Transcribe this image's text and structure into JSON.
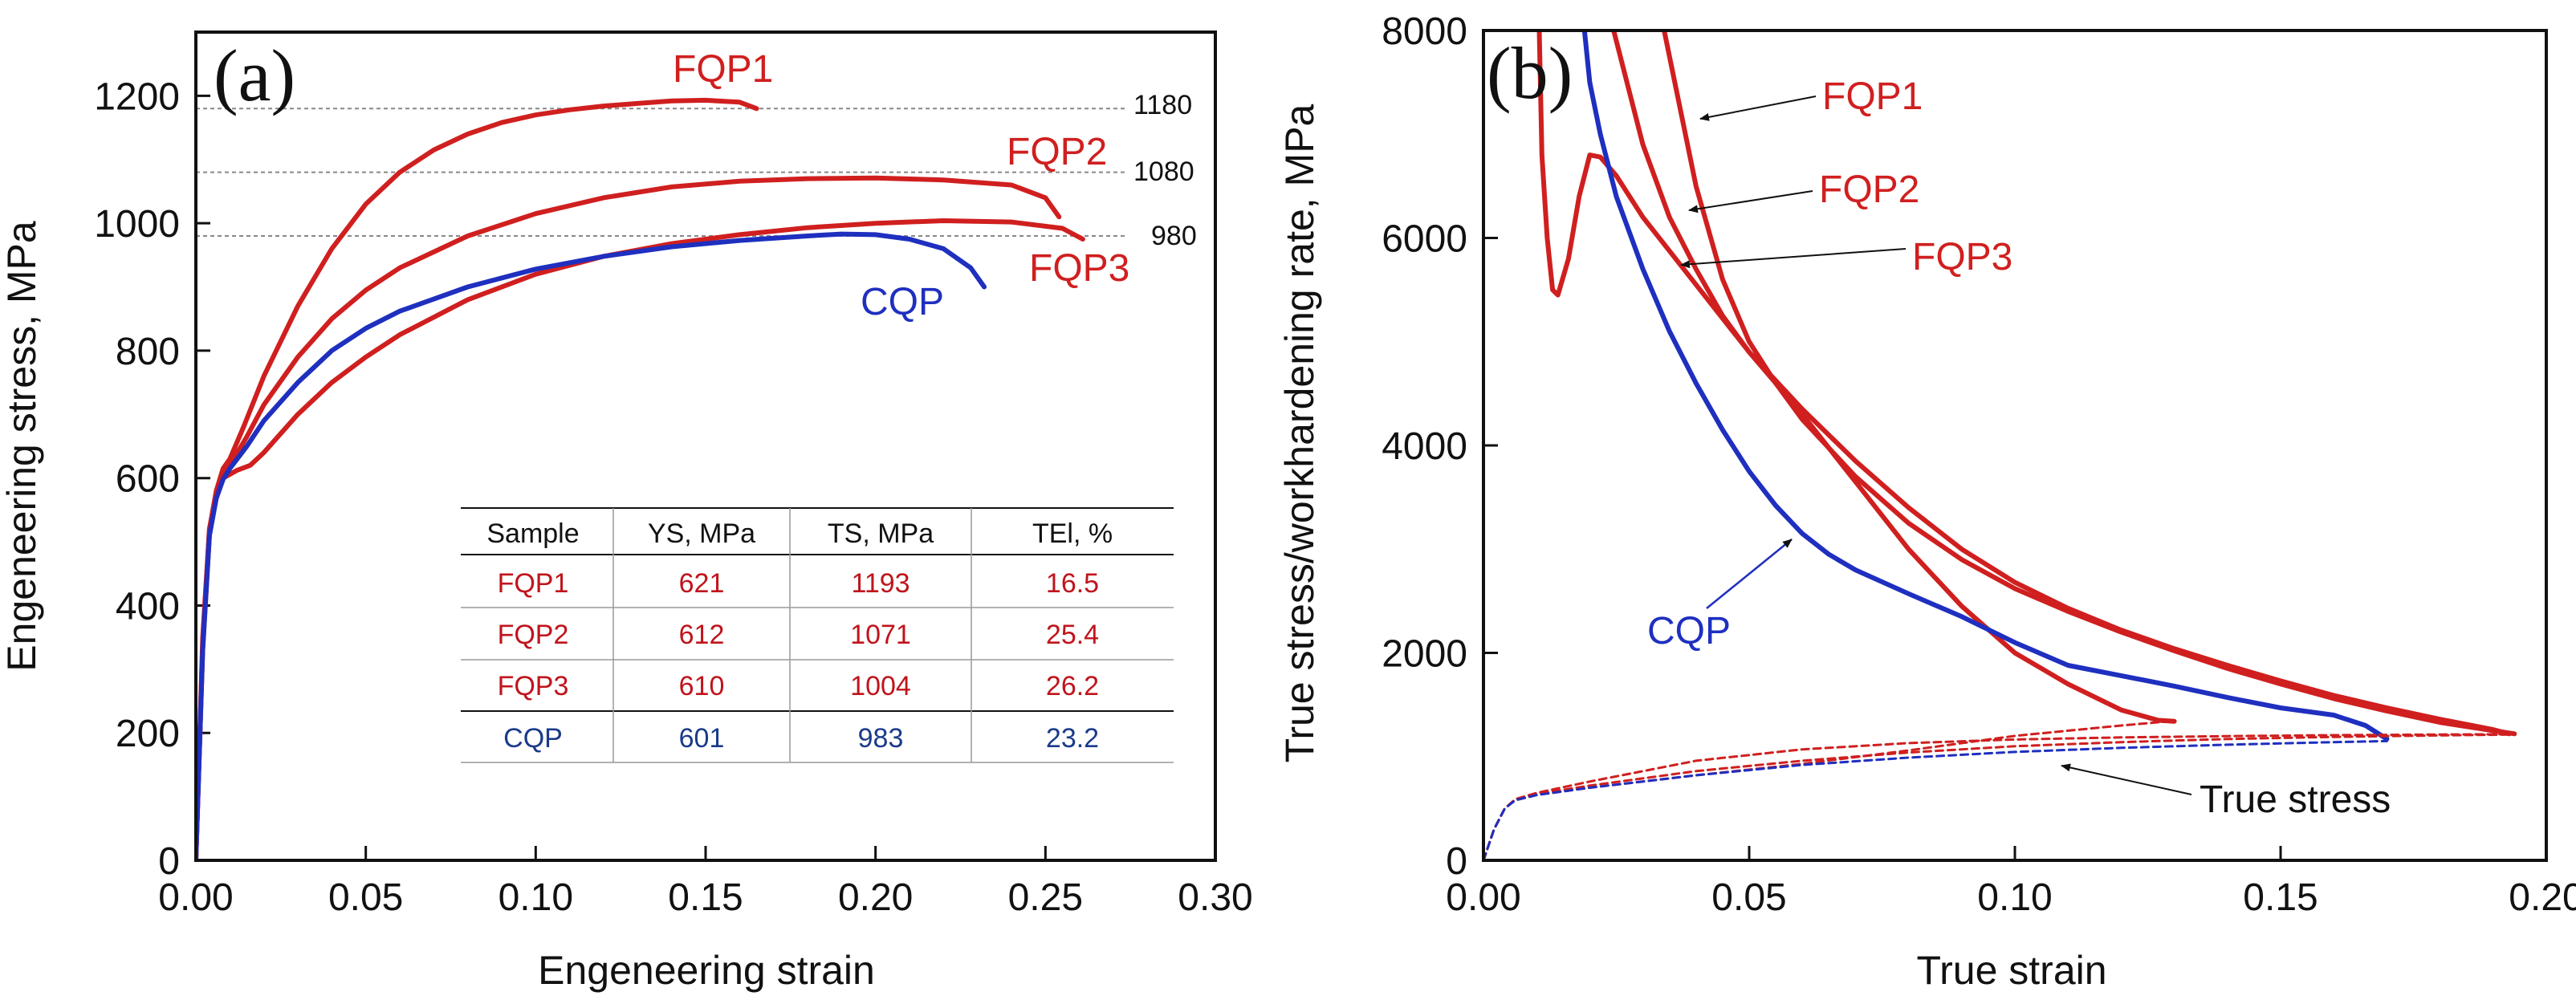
{
  "colors": {
    "red": "#d01f1f",
    "blue": "#1f2fbf",
    "axis": "#111111",
    "guide": "#888888",
    "table_red": "#c0141c",
    "table_blue": "#1a3a8a"
  },
  "chart_data": [
    {
      "type": "line",
      "panel_label": "(a)",
      "xlabel": "Engeneering strain",
      "ylabel": "Engeneering stress, MPa",
      "xlim": [
        0,
        0.3
      ],
      "ylim": [
        0,
        1300
      ],
      "xticks": [
        "0.00",
        "0.05",
        "0.10",
        "0.15",
        "0.20",
        "0.25",
        "0.30"
      ],
      "yticks": [
        "0",
        "200",
        "400",
        "600",
        "800",
        "1000",
        "1200"
      ],
      "guide_lines": [
        {
          "value": 1180,
          "label": "1180"
        },
        {
          "value": 1080,
          "label": "1080"
        },
        {
          "value": 980,
          "label": "980"
        }
      ],
      "series": [
        {
          "name": "FQP1",
          "color": "red",
          "x": [
            0,
            0.002,
            0.004,
            0.006,
            0.008,
            0.01,
            0.014,
            0.02,
            0.03,
            0.04,
            0.05,
            0.06,
            0.07,
            0.08,
            0.09,
            0.1,
            0.11,
            0.12,
            0.13,
            0.14,
            0.15,
            0.16,
            0.165
          ],
          "y": [
            0,
            350,
            520,
            580,
            615,
            630,
            680,
            760,
            870,
            960,
            1030,
            1080,
            1115,
            1140,
            1158,
            1170,
            1178,
            1184,
            1188,
            1192,
            1193,
            1190,
            1180
          ]
        },
        {
          "name": "FQP2",
          "color": "red",
          "x": [
            0,
            0.002,
            0.004,
            0.006,
            0.008,
            0.01,
            0.015,
            0.02,
            0.03,
            0.04,
            0.05,
            0.06,
            0.08,
            0.1,
            0.12,
            0.14,
            0.16,
            0.18,
            0.2,
            0.22,
            0.24,
            0.25,
            0.254
          ],
          "y": [
            0,
            340,
            520,
            575,
            605,
            620,
            665,
            715,
            790,
            850,
            895,
            930,
            980,
            1015,
            1040,
            1057,
            1066,
            1070,
            1071,
            1068,
            1060,
            1040,
            1010
          ]
        },
        {
          "name": "FQP3",
          "color": "red",
          "x": [
            0,
            0.002,
            0.004,
            0.006,
            0.008,
            0.012,
            0.016,
            0.02,
            0.03,
            0.04,
            0.05,
            0.06,
            0.08,
            0.1,
            0.12,
            0.14,
            0.16,
            0.18,
            0.2,
            0.22,
            0.24,
            0.255,
            0.261
          ],
          "y": [
            0,
            330,
            510,
            570,
            600,
            612,
            620,
            640,
            700,
            750,
            790,
            825,
            880,
            920,
            948,
            968,
            982,
            993,
            1000,
            1004,
            1002,
            992,
            975
          ]
        },
        {
          "name": "CQP",
          "color": "blue",
          "x": [
            0,
            0.002,
            0.004,
            0.006,
            0.008,
            0.01,
            0.015,
            0.02,
            0.03,
            0.04,
            0.05,
            0.06,
            0.08,
            0.1,
            0.12,
            0.14,
            0.16,
            0.18,
            0.19,
            0.2,
            0.21,
            0.22,
            0.228,
            0.232
          ],
          "y": [
            0,
            330,
            510,
            568,
            598,
            615,
            650,
            690,
            750,
            800,
            835,
            862,
            900,
            928,
            948,
            963,
            973,
            980,
            983,
            982,
            975,
            960,
            930,
            900
          ]
        }
      ],
      "series_labels": [
        {
          "text": "FQP1",
          "color": "red"
        },
        {
          "text": "FQP2",
          "color": "red"
        },
        {
          "text": "FQP3",
          "color": "red"
        },
        {
          "text": "CQP",
          "color": "blue"
        }
      ],
      "table": {
        "headers": [
          "Sample",
          "YS, MPa",
          "TS, MPa",
          "TEl, %"
        ],
        "rows": [
          {
            "color": "table_red",
            "cells": [
              "FQP1",
              "621",
              "1193",
              "16.5"
            ]
          },
          {
            "color": "table_red",
            "cells": [
              "FQP2",
              "612",
              "1071",
              "25.4"
            ]
          },
          {
            "color": "table_red",
            "cells": [
              "FQP3",
              "610",
              "1004",
              "26.2"
            ]
          },
          {
            "color": "table_blue",
            "cells": [
              "CQP",
              "601",
              "983",
              "23.2"
            ]
          }
        ]
      }
    },
    {
      "type": "line",
      "panel_label": "(b)",
      "xlabel": "True strain",
      "ylabel": "True stress/workhardening rate, MPa",
      "xlim": [
        0,
        0.2
      ],
      "ylim": [
        0,
        8000
      ],
      "xticks": [
        "0.00",
        "0.05",
        "0.10",
        "0.15",
        "0.20"
      ],
      "yticks": [
        "0",
        "2000",
        "4000",
        "6000",
        "8000"
      ],
      "series": [
        {
          "name": "FQP1",
          "color": "red",
          "style": "solid",
          "x": [
            0.034,
            0.04,
            0.045,
            0.05,
            0.055,
            0.06,
            0.07,
            0.08,
            0.09,
            0.1,
            0.11,
            0.12,
            0.13,
            0.14,
            0.15,
            0.16,
            0.17,
            0.18,
            0.19,
            0.194
          ],
          "y": [
            8000,
            6500,
            5600,
            5000,
            4600,
            4250,
            3700,
            3250,
            2900,
            2620,
            2400,
            2200,
            2020,
            1850,
            1700,
            1560,
            1440,
            1330,
            1250,
            1220
          ]
        },
        {
          "name": "FQP2",
          "color": "red",
          "style": "solid",
          "x": [
            0.0245,
            0.03,
            0.035,
            0.04,
            0.045,
            0.05,
            0.06,
            0.07,
            0.08,
            0.09,
            0.1,
            0.11,
            0.12,
            0.13,
            0.14,
            0.15,
            0.16,
            0.17,
            0.18,
            0.19,
            0.193
          ],
          "y": [
            8000,
            6900,
            6200,
            5700,
            5250,
            4900,
            4350,
            3850,
            3400,
            3000,
            2680,
            2430,
            2220,
            2040,
            1880,
            1730,
            1590,
            1470,
            1360,
            1260,
            1220
          ]
        },
        {
          "name": "FQP3",
          "color": "red",
          "style": "solid",
          "x": [
            0.0105,
            0.011,
            0.012,
            0.013,
            0.014,
            0.016,
            0.018,
            0.02,
            0.022,
            0.025,
            0.03,
            0.04,
            0.05,
            0.06,
            0.07,
            0.08,
            0.09,
            0.1,
            0.11,
            0.12,
            0.127,
            0.13
          ],
          "y": [
            8000,
            6800,
            6000,
            5500,
            5450,
            5800,
            6400,
            6800,
            6780,
            6600,
            6200,
            5550,
            4900,
            4300,
            3650,
            3000,
            2450,
            2000,
            1700,
            1450,
            1350,
            1340
          ]
        },
        {
          "name": "CQP",
          "color": "blue",
          "style": "solid",
          "x": [
            0.019,
            0.02,
            0.022,
            0.025,
            0.03,
            0.035,
            0.04,
            0.045,
            0.05,
            0.055,
            0.06,
            0.065,
            0.07,
            0.08,
            0.09,
            0.1,
            0.11,
            0.12,
            0.13,
            0.14,
            0.15,
            0.16,
            0.166,
            0.17
          ],
          "y": [
            8000,
            7500,
            7000,
            6400,
            5700,
            5100,
            4600,
            4150,
            3750,
            3420,
            3150,
            2950,
            2800,
            2570,
            2350,
            2100,
            1880,
            1780,
            1680,
            1570,
            1470,
            1400,
            1300,
            1170
          ]
        },
        {
          "name": "FQP1 true stress",
          "color": "red",
          "style": "dashed",
          "x": [
            0,
            0.002,
            0.004,
            0.006,
            0.01,
            0.02,
            0.04,
            0.06,
            0.08,
            0.1,
            0.12,
            0.14,
            0.16,
            0.18,
            0.194
          ],
          "y": [
            0,
            300,
            500,
            590,
            650,
            760,
            960,
            1070,
            1130,
            1165,
            1185,
            1198,
            1207,
            1213,
            1216
          ]
        },
        {
          "name": "FQP2 true stress",
          "color": "red",
          "style": "dashed",
          "x": [
            0,
            0.002,
            0.004,
            0.006,
            0.01,
            0.02,
            0.04,
            0.06,
            0.08,
            0.1,
            0.12,
            0.14,
            0.16,
            0.18,
            0.193
          ],
          "y": [
            0,
            300,
            500,
            585,
            640,
            720,
            860,
            960,
            1040,
            1100,
            1140,
            1170,
            1190,
            1205,
            1212
          ]
        },
        {
          "name": "FQP3 true stress",
          "color": "red",
          "style": "dashed",
          "x": [
            0,
            0.002,
            0.004,
            0.006,
            0.01,
            0.02,
            0.04,
            0.06,
            0.08,
            0.1,
            0.12,
            0.13
          ],
          "y": [
            0,
            300,
            500,
            580,
            630,
            700,
            820,
            930,
            1060,
            1200,
            1300,
            1345
          ]
        },
        {
          "name": "CQP true stress",
          "color": "blue",
          "style": "dashed",
          "x": [
            0,
            0.002,
            0.004,
            0.006,
            0.01,
            0.02,
            0.04,
            0.06,
            0.08,
            0.1,
            0.12,
            0.14,
            0.16,
            0.17
          ],
          "y": [
            0,
            300,
            500,
            580,
            630,
            700,
            820,
            920,
            990,
            1045,
            1085,
            1115,
            1140,
            1150
          ]
        }
      ],
      "series_labels": [
        {
          "text": "FQP1",
          "color": "red"
        },
        {
          "text": "FQP2",
          "color": "red"
        },
        {
          "text": "FQP3",
          "color": "red"
        },
        {
          "text": "CQP",
          "color": "blue"
        },
        {
          "text": "True stress",
          "color": "axis"
        }
      ]
    }
  ]
}
